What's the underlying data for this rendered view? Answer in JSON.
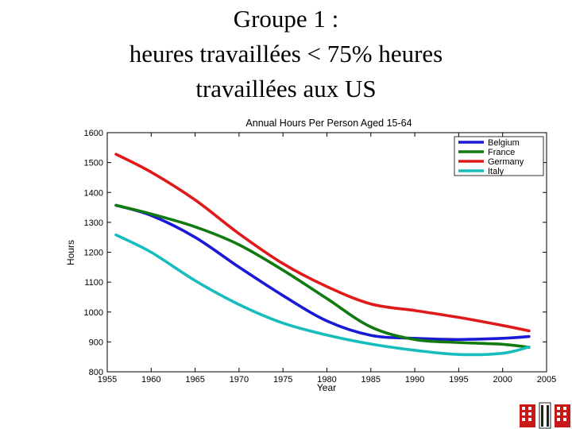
{
  "slide": {
    "title_lines": [
      "Groupe 1 :",
      "heures travaillées < 75% heures",
      "travaillées aux US"
    ]
  },
  "chart_data": {
    "type": "line",
    "title": "Annual Hours Per Person Aged 15-64",
    "xlabel": "Year",
    "ylabel": "Hours",
    "xlim": [
      1955,
      2005
    ],
    "ylim": [
      800,
      1600
    ],
    "xticks": [
      1955,
      1960,
      1965,
      1970,
      1975,
      1980,
      1985,
      1990,
      1995,
      2000,
      2005
    ],
    "yticks": [
      800,
      900,
      1000,
      1100,
      1200,
      1300,
      1400,
      1500,
      1600
    ],
    "grid": false,
    "legend": "top-right",
    "x": [
      1956,
      1960,
      1965,
      1970,
      1975,
      1980,
      1985,
      1990,
      1995,
      2000,
      2003
    ],
    "series": [
      {
        "name": "Belgium",
        "color": "#1a1ad6",
        "values": [
          1357,
          1323,
          1250,
          1150,
          1055,
          970,
          922,
          912,
          908,
          912,
          918
        ]
      },
      {
        "name": "France",
        "color": "#117a11",
        "values": [
          1357,
          1328,
          1285,
          1225,
          1140,
          1045,
          950,
          908,
          898,
          892,
          882
        ]
      },
      {
        "name": "Germany",
        "color": "#e01a1a",
        "values": [
          1528,
          1468,
          1375,
          1262,
          1162,
          1085,
          1027,
          1005,
          982,
          955,
          937
        ]
      },
      {
        "name": "Italy",
        "color": "#17bcbc",
        "values": [
          1258,
          1200,
          1105,
          1025,
          963,
          923,
          893,
          872,
          858,
          862,
          883
        ]
      }
    ]
  }
}
